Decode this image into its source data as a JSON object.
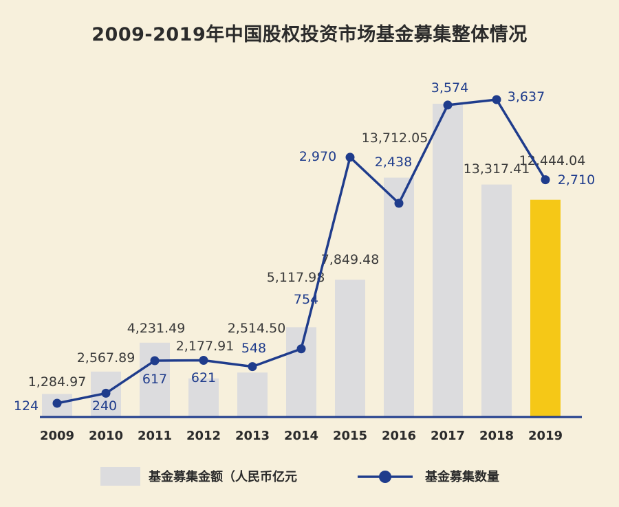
{
  "title": "2009-2019年中国股权投资市场基金募集整体情况",
  "colors": {
    "background": "#f7f0dc",
    "bar": "#dcdcde",
    "bar_highlight": "#f5c817",
    "line": "#1f3c8c",
    "axis": "#1f3c8c",
    "bar_label": "#3a3a3a",
    "count_label": "#1f3c8c"
  },
  "chart_data": {
    "type": "bar+line",
    "title": "2009-2019年中国股权投资市场基金募集整体情况",
    "categories": [
      "2009",
      "2010",
      "2011",
      "2012",
      "2013",
      "2014",
      "2015",
      "2016",
      "2017",
      "2018",
      "2019"
    ],
    "series": [
      {
        "name": "基金募集金额（人民币亿元",
        "type": "bar",
        "values": [
          1284.97,
          2567.89,
          4231.49,
          2177.91,
          2514.5,
          5117.98,
          7849.48,
          13712.05,
          17960,
          13317.41,
          12444.04
        ],
        "labels": [
          "1,284.97",
          "2,567.89",
          "4,231.49",
          "2,177.91",
          "2,514.50",
          "5,117.98",
          "7,849.48",
          "13,712.05",
          "",
          "13,317.41",
          "12,444.04"
        ],
        "highlight_index": 10
      },
      {
        "name": "基金募集数量",
        "type": "line",
        "values": [
          124,
          240,
          617,
          621,
          548,
          754,
          2970,
          2438,
          3574,
          3637,
          2710
        ],
        "labels": [
          "124",
          "240",
          "617",
          "621",
          "548",
          "754",
          "2,970",
          "2,438",
          "3,574",
          "3,637",
          "2,710"
        ]
      }
    ],
    "legend": [
      "基金募集金额（人民币亿元",
      "基金募集数量"
    ],
    "legend_position": "bottom"
  }
}
